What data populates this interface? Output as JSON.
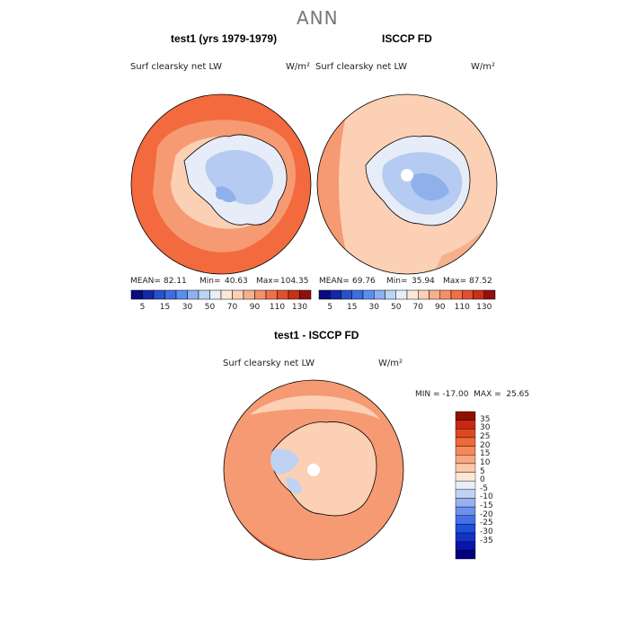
{
  "figure": {
    "title": "ANN"
  },
  "panels": [
    {
      "title": "test1 (yrs 1979-1979)",
      "variable": "Surf clearsky net LW",
      "units": "W/m²",
      "stats": {
        "mean": "82.11",
        "min": "40.63",
        "max": "104.35"
      }
    },
    {
      "title": "ISCCP FD",
      "variable": "Surf clearsky net LW",
      "units": "W/m²",
      "stats": {
        "mean": "69.76",
        "min": "35.94",
        "max": "87.52"
      }
    },
    {
      "title": "test1 - ISCCP FD",
      "variable": "Surf clearsky net LW",
      "units": "W/m²",
      "minmax_text": "MIN = -17.00  MAX =  25.65"
    }
  ],
  "labels": {
    "mean": "MEAN=",
    "min": "Min=",
    "max": "Max="
  },
  "abs_colorbar": {
    "colors": [
      "#0a0a80",
      "#1428a8",
      "#2850c8",
      "#3c6ee0",
      "#5a8ef0",
      "#8cb0f0",
      "#bcd4f4",
      "#e8eef8",
      "#fde8d8",
      "#fcd0b4",
      "#f8b08c",
      "#f49068",
      "#f07048",
      "#e05030",
      "#c83018",
      "#901010"
    ],
    "tick_labels": [
      "5",
      "15",
      "30",
      "50",
      "70",
      "90",
      "110",
      "130"
    ]
  },
  "diff_colorbar": {
    "colors": [
      "#000080",
      "#0a14a8",
      "#1432c8",
      "#1e50dc",
      "#4670e8",
      "#6e90ec",
      "#98b0f0",
      "#c0d2f4",
      "#e8eef8",
      "#fde8d8",
      "#fcc8a8",
      "#f8a880",
      "#f48858",
      "#f06838",
      "#e04820",
      "#c82810",
      "#901000"
    ],
    "tick_labels": [
      "35",
      "30",
      "25",
      "20",
      "15",
      "10",
      "5",
      "0",
      "-5",
      "-10",
      "-15",
      "-20",
      "-25",
      "-30",
      "-35"
    ]
  },
  "map_colors": {
    "high": "#f26a3e",
    "mid": "#f59a72",
    "low": "#fbd7c0",
    "pale": "#fce8dc",
    "ice_light": "#dde6f6",
    "ice_mid": "#b6cbf1",
    "ice_dark": "#8fb0ea",
    "coast": "#000000"
  }
}
